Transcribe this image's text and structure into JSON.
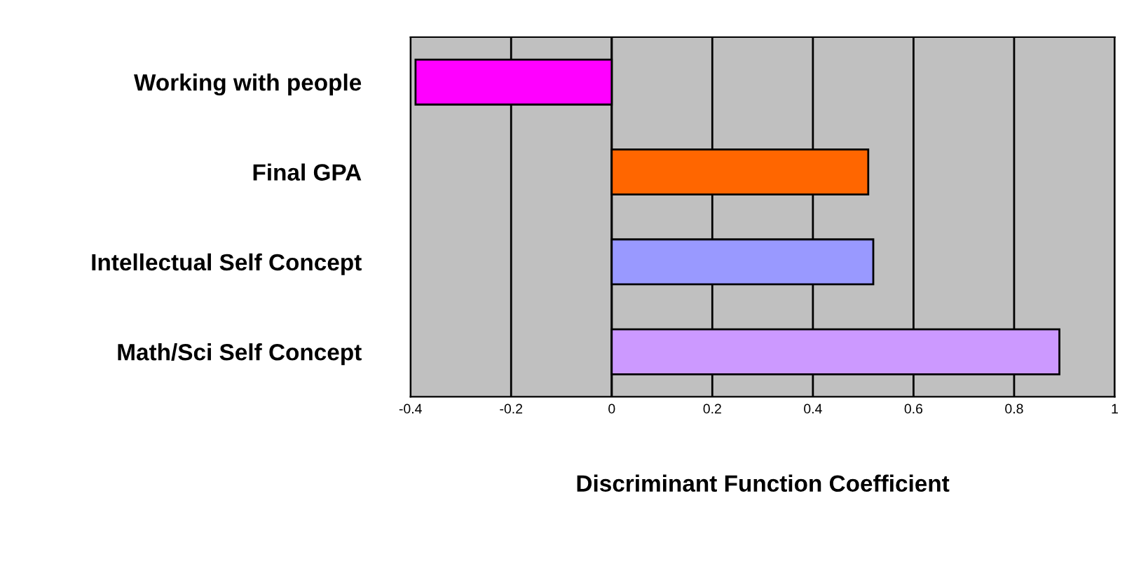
{
  "chart_data": {
    "type": "bar",
    "orientation": "horizontal",
    "xlabel": "Discriminant Function Coefficient",
    "categories": [
      "Working with people",
      "Final GPA",
      "Intellectual Self Concept",
      "Math/Sci Self Concept"
    ],
    "values": [
      -0.39,
      0.51,
      0.52,
      0.89
    ],
    "colors": [
      "#ff00ff",
      "#ff6600",
      "#9999ff",
      "#cc99ff"
    ],
    "xlim": [
      -0.4,
      1
    ],
    "xticks": [
      -0.4,
      -0.2,
      0,
      0.2,
      0.4,
      0.6,
      0.8,
      1
    ],
    "grid": "x"
  }
}
